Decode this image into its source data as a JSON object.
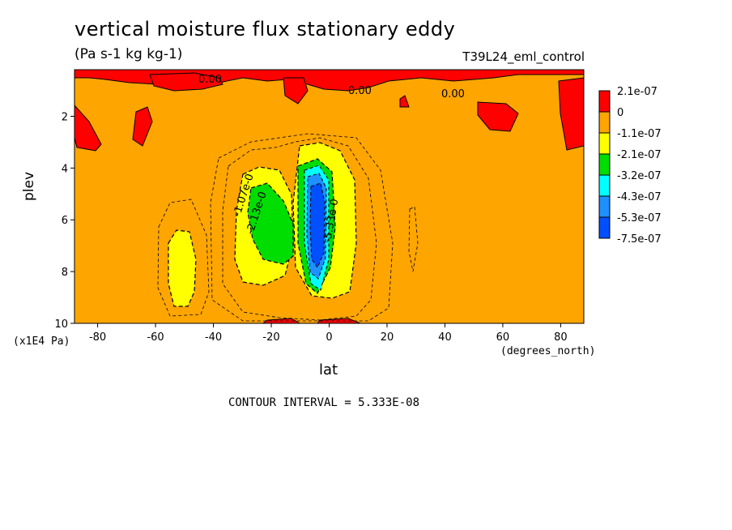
{
  "chart_data": {
    "type": "heatmap",
    "title": "vertical moisture flux stationary eddy",
    "units": "(Pa s-1 kg kg-1)",
    "run_label": "T39L24_eml_control",
    "xlabel": "lat",
    "xunits": "(degrees_north)",
    "ylabel": "plev",
    "yunits": "(x1E4 Pa)",
    "xlim": [
      -88,
      88
    ],
    "ylim": [
      10,
      0.2
    ],
    "xticks": [
      "-80",
      "-60",
      "-40",
      "-20",
      "0",
      "20",
      "40",
      "60",
      "80"
    ],
    "xtick_values": [
      -80,
      -60,
      -40,
      -20,
      0,
      20,
      40,
      60,
      80
    ],
    "yticks": [
      "2",
      "4",
      "6",
      "8",
      "10"
    ],
    "ytick_values": [
      2,
      4,
      6,
      8,
      10
    ],
    "contour_interval": "CONTOUR INTERVAL = 5.333E-08",
    "legend": [
      {
        "label": "2.1e-07",
        "color": "#ff0000"
      },
      {
        "label": "0",
        "color": "#ffa500"
      },
      {
        "label": "-1.1e-07",
        "color": "#ffff00"
      },
      {
        "label": "-2.1e-07",
        "color": "#00dd00"
      },
      {
        "label": "-3.2e-07",
        "color": "#00ffff"
      },
      {
        "label": "-4.3e-07",
        "color": "#1e90ff"
      },
      {
        "label": "-5.3e-07",
        "color": "#0050ff"
      },
      {
        "label": "-7.5e-07",
        "color": ""
      }
    ],
    "contour_labels": [
      "0.00",
      "0.00",
      "0.00",
      "-1.07e-0",
      "-2.13e-0",
      "-5.33e-0"
    ]
  }
}
